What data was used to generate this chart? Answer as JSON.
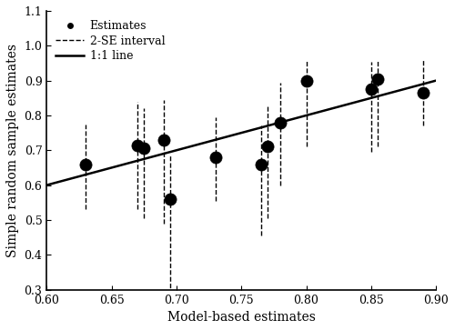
{
  "x": [
    0.63,
    0.67,
    0.675,
    0.69,
    0.695,
    0.73,
    0.765,
    0.77,
    0.78,
    0.8,
    0.85,
    0.855,
    0.89
  ],
  "y": [
    0.66,
    0.715,
    0.705,
    0.73,
    0.56,
    0.68,
    0.66,
    0.71,
    0.78,
    0.9,
    0.875,
    0.905,
    0.865
  ],
  "yerr_low": [
    0.13,
    0.185,
    0.2,
    0.24,
    0.275,
    0.125,
    0.205,
    0.205,
    0.18,
    0.19,
    0.18,
    0.195,
    0.095
  ],
  "yerr_high": [
    0.115,
    0.125,
    0.115,
    0.115,
    0.125,
    0.115,
    0.11,
    0.115,
    0.115,
    0.06,
    0.08,
    0.055,
    0.095
  ],
  "line_x": [
    0.6,
    0.9
  ],
  "line_y": [
    0.6,
    0.9
  ],
  "xlim": [
    0.6,
    0.9
  ],
  "ylim": [
    0.3,
    1.1
  ],
  "xticks": [
    0.6,
    0.65,
    0.7,
    0.75,
    0.8,
    0.85,
    0.9
  ],
  "yticks": [
    0.3,
    0.4,
    0.5,
    0.6,
    0.7,
    0.8,
    0.9,
    1.0,
    1.1
  ],
  "xlabel": "Model-based estimates",
  "ylabel": "Simple random sample estimates",
  "legend_labels": [
    "Estimates",
    "2-SE interval",
    "1:1 line"
  ],
  "marker_color": "#000000",
  "line_color": "#000000",
  "errorbar_color": "#000000",
  "background_color": "#ffffff",
  "marker_size": 6,
  "errorbar_linewidth": 1.0,
  "line_linewidth": 1.8,
  "font_size": 9,
  "label_font_size": 10
}
